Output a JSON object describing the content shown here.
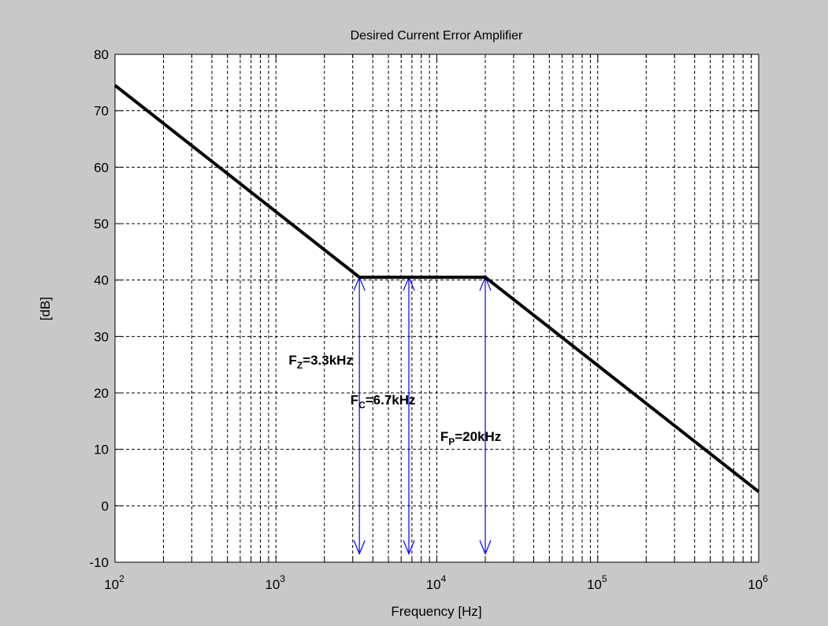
{
  "chart_data": {
    "type": "line",
    "title": "Desired Current Error Amplifier",
    "xlabel": "Frequency [Hz]",
    "ylabel": "[dB]",
    "xscale": "log",
    "xlim": [
      100,
      1000000
    ],
    "ylim": [
      -10,
      80
    ],
    "grid": true,
    "x_ticks": [
      {
        "value": 100,
        "base": "10",
        "exp": "2"
      },
      {
        "value": 1000,
        "base": "10",
        "exp": "3"
      },
      {
        "value": 10000,
        "base": "10",
        "exp": "4"
      },
      {
        "value": 100000,
        "base": "10",
        "exp": "5"
      },
      {
        "value": 1000000,
        "base": "10",
        "exp": "6"
      }
    ],
    "y_ticks": [
      -10,
      0,
      10,
      20,
      30,
      40,
      50,
      60,
      70,
      80
    ],
    "series": [
      {
        "x": [
          100,
          3300,
          20000,
          1000000
        ],
        "y": [
          74.5,
          40.5,
          40.5,
          2.5
        ],
        "color": "#000000"
      }
    ],
    "markers": [
      {
        "x": 3300,
        "y_top": 40.5,
        "y_bottom": -8.5,
        "color": "#0000ff"
      },
      {
        "x": 6700,
        "y_top": 40.5,
        "y_bottom": -8.5,
        "color": "#0000ff"
      },
      {
        "x": 20000,
        "y_top": 40.5,
        "y_bottom": -8.5,
        "color": "#0000ff"
      }
    ],
    "annotations": [
      {
        "main": "F",
        "sub": "Z",
        "rest": "=3.3kHz",
        "x": 1200,
        "y": 25
      },
      {
        "main": "F",
        "sub": "C",
        "rest": "=6.7kHz",
        "x": 2900,
        "y": 18
      },
      {
        "main": "F",
        "sub": "P",
        "rest": "=20kHz",
        "x": 10500,
        "y": 11.5
      }
    ]
  }
}
